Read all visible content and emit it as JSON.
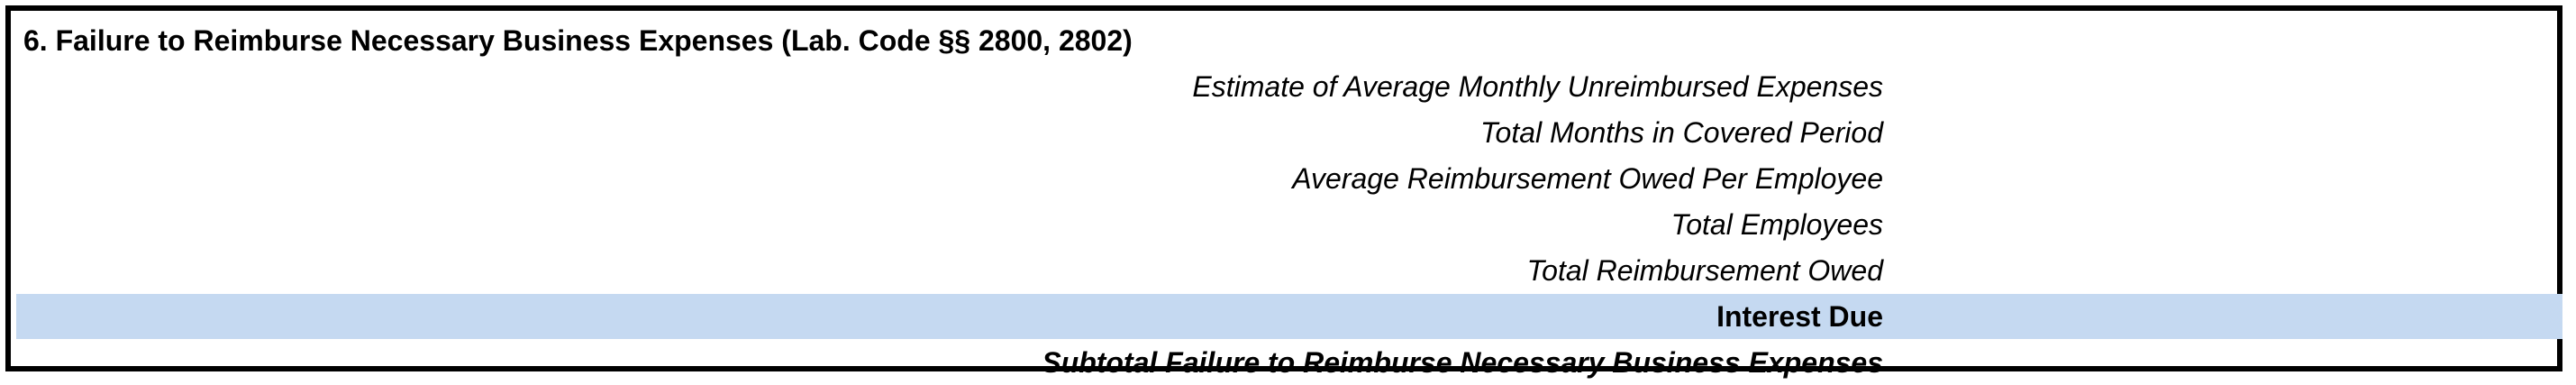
{
  "section": {
    "title": "6. Failure to Reimburse Necessary Business Expenses (Lab. Code §§ 2800, 2802)",
    "rows": [
      {
        "label": "Estimate of Average Monthly Unreimbursed Expenses"
      },
      {
        "label": "Total Months in Covered Period"
      },
      {
        "label": "Average Reimbursement Owed Per Employee"
      },
      {
        "label": "Total Employees"
      },
      {
        "label": "Total Reimbursement Owed"
      },
      {
        "label": "Interest Due"
      },
      {
        "label": "Subtotal Failure to Reimburse Necessary Business Expenses"
      }
    ]
  },
  "colors": {
    "highlight_row": "#c5d9f1",
    "border": "#000000"
  }
}
